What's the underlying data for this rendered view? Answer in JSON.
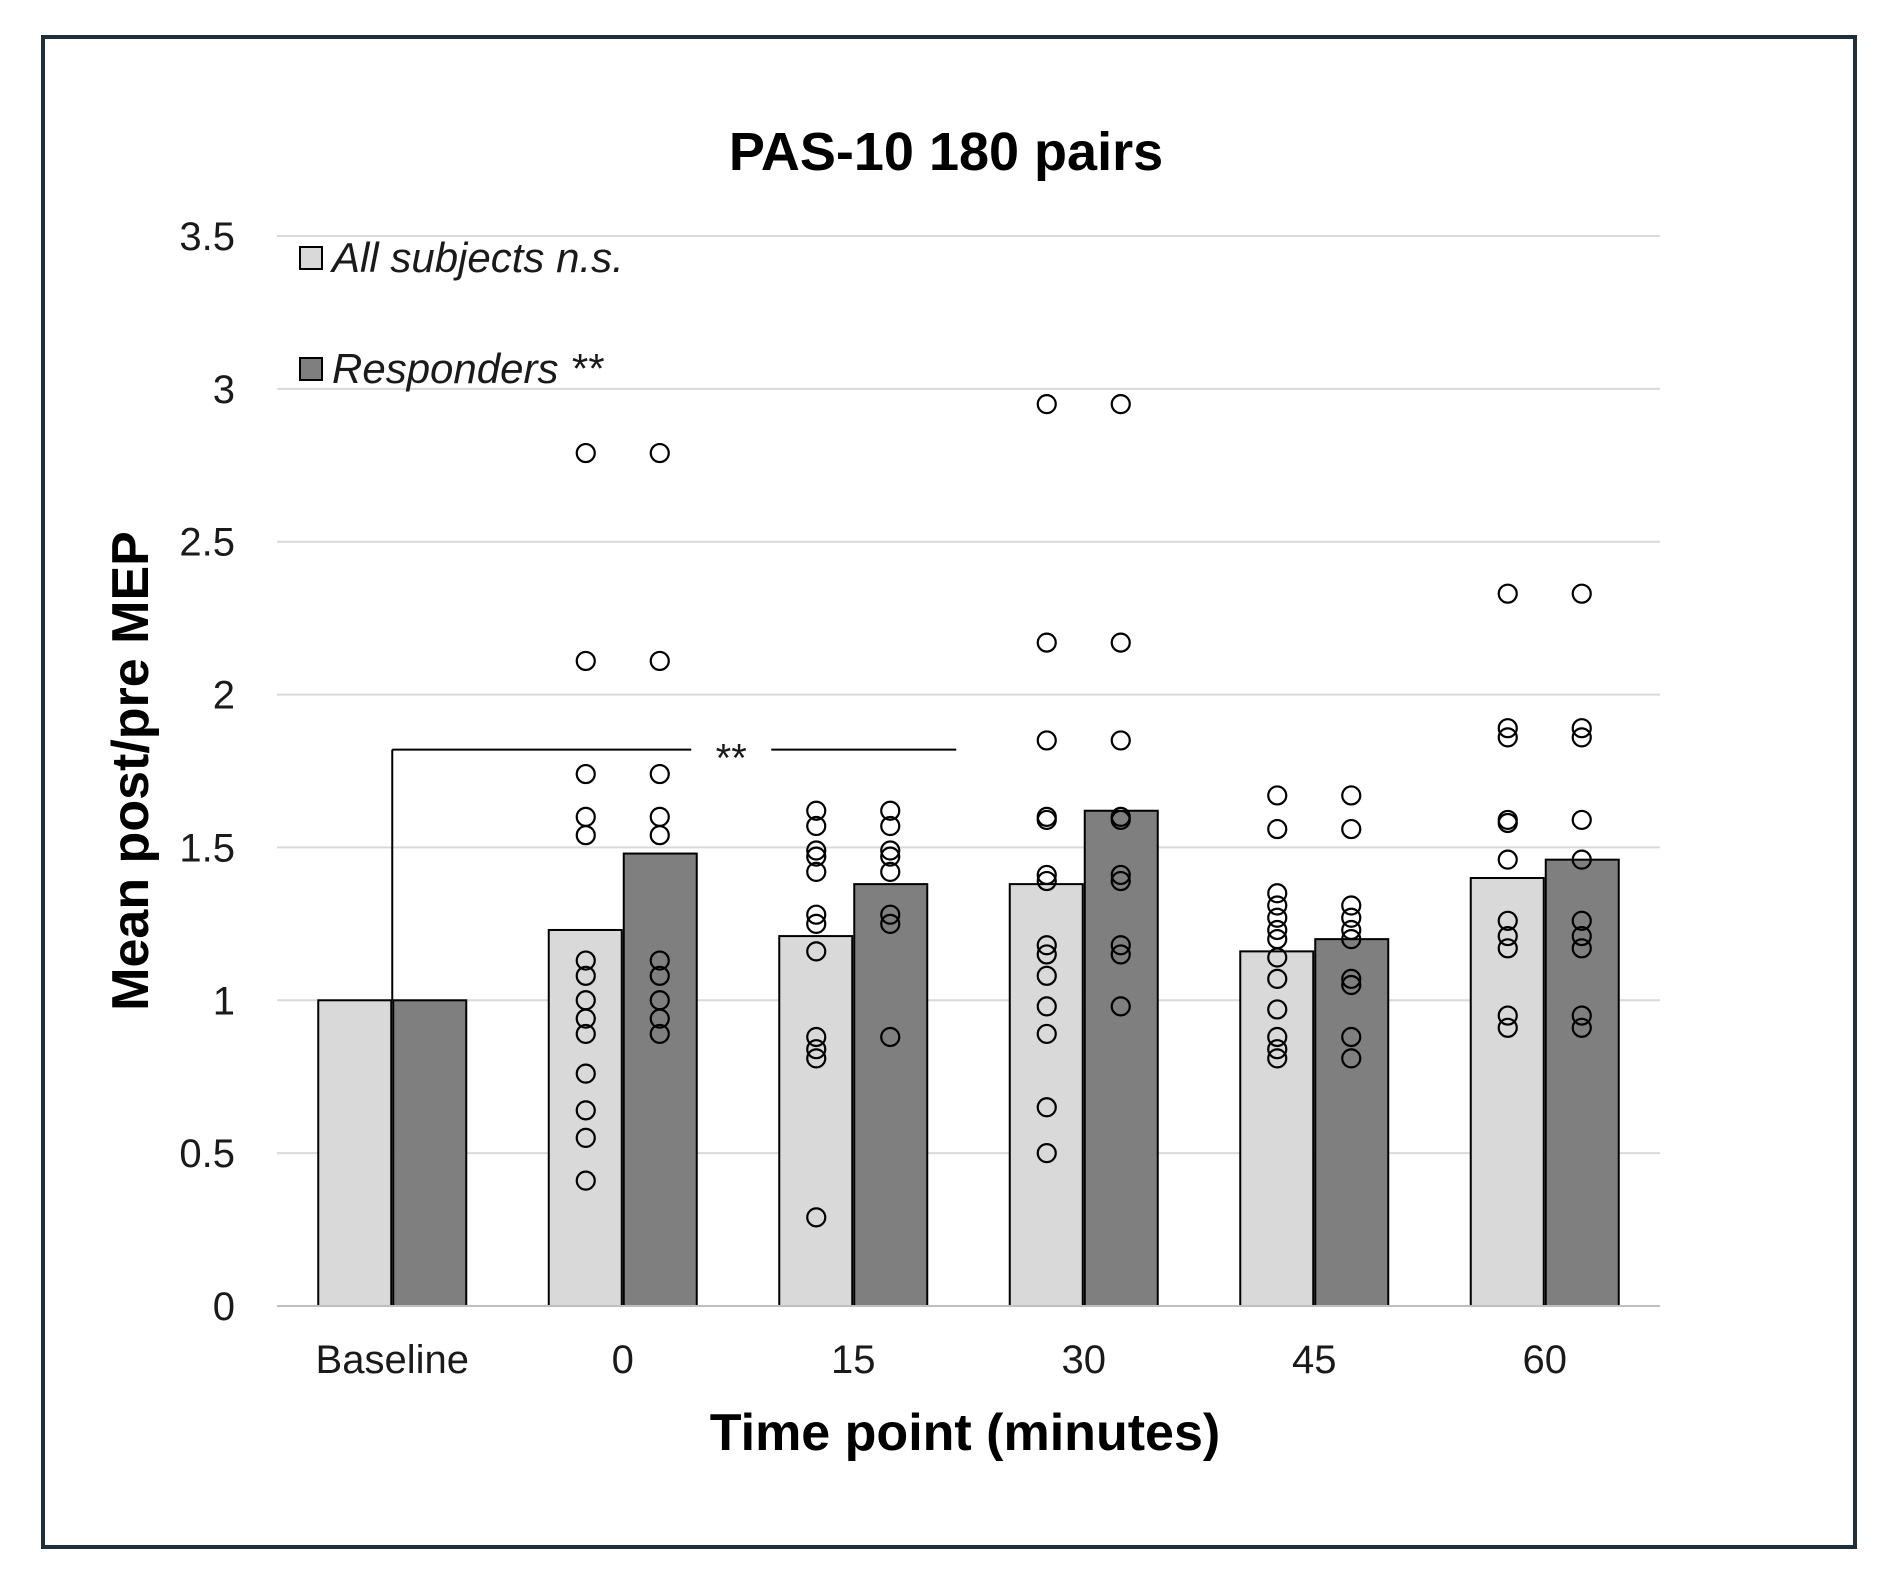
{
  "chart_data": {
    "type": "bar",
    "title": "PAS-10 180 pairs",
    "xlabel": "Time point  (minutes)",
    "ylabel": "Mean post/pre MEP",
    "ylim": [
      0,
      3.5
    ],
    "yticks": [
      "0",
      "0.5",
      "1",
      "1.5",
      "2",
      "2.5",
      "3",
      "3.5"
    ],
    "grid": true,
    "categories": [
      "Baseline",
      "0",
      "15",
      "30",
      "45",
      "60"
    ],
    "series": [
      {
        "name": "All subjects n.s.",
        "color": "#d9d9d9",
        "values": [
          1.0,
          1.23,
          1.21,
          1.38,
          1.16,
          1.4
        ],
        "points": [
          [],
          [
            2.79,
            2.11,
            1.74,
            1.6,
            1.54,
            1.13,
            1.08,
            1.0,
            0.94,
            0.89,
            0.76,
            0.64,
            0.55,
            0.41
          ],
          [
            1.62,
            1.57,
            1.49,
            1.47,
            1.42,
            1.28,
            1.25,
            1.16,
            0.88,
            0.84,
            0.81,
            0.29
          ],
          [
            2.95,
            2.17,
            1.85,
            1.6,
            1.59,
            1.41,
            1.39,
            1.18,
            1.15,
            1.08,
            0.98,
            0.89,
            0.65,
            0.5
          ],
          [
            1.67,
            1.56,
            1.35,
            1.31,
            1.27,
            1.23,
            1.2,
            1.14,
            1.07,
            0.97,
            0.88,
            0.84,
            0.81
          ],
          [
            2.33,
            1.89,
            1.86,
            1.59,
            1.58,
            1.46,
            1.26,
            1.21,
            1.17,
            0.95,
            0.91
          ]
        ]
      },
      {
        "name": "Responders **",
        "color": "#7f7f7f",
        "values": [
          1.0,
          1.48,
          1.38,
          1.62,
          1.2,
          1.46
        ],
        "points": [
          [],
          [
            2.79,
            2.11,
            1.74,
            1.6,
            1.54,
            1.13,
            1.08,
            1.0,
            0.94,
            0.89
          ],
          [
            1.62,
            1.57,
            1.49,
            1.47,
            1.42,
            1.28,
            1.25,
            0.88
          ],
          [
            2.95,
            2.17,
            1.85,
            1.6,
            1.59,
            1.41,
            1.39,
            1.18,
            1.15,
            0.98
          ],
          [
            1.67,
            1.56,
            1.31,
            1.27,
            1.23,
            1.2,
            1.07,
            1.05,
            0.88,
            0.81
          ],
          [
            2.33,
            1.89,
            1.86,
            1.59,
            1.46,
            1.26,
            1.21,
            1.17,
            0.95,
            0.91
          ]
        ]
      }
    ],
    "annotations": [
      {
        "text": "**",
        "from_category": "Baseline",
        "to_category": "15",
        "y": 1.82
      }
    ]
  }
}
